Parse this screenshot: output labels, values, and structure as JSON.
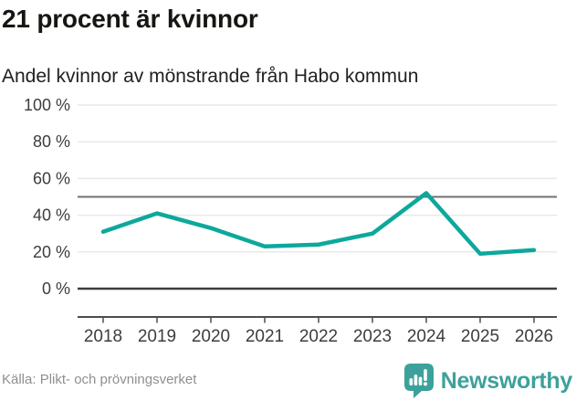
{
  "header": {
    "title": "21 procent är kvinnor",
    "subtitle": "Andel kvinnor av mönstrande från Habo kommun"
  },
  "chart_data": {
    "type": "line",
    "title": "21 procent är kvinnor",
    "subtitle": "Andel kvinnor av mönstrande från Habo kommun",
    "categories": [
      "2018",
      "2019",
      "2020",
      "2021",
      "2022",
      "2023",
      "2024",
      "2025",
      "2026"
    ],
    "series": [
      {
        "name": "Andel kvinnor av mönstrande",
        "values": [
          31,
          41,
          33,
          23,
          24,
          30,
          52,
          19,
          21
        ]
      }
    ],
    "unit": "%",
    "xlabel": "",
    "ylabel": "",
    "ylim": [
      0,
      100
    ],
    "yticks": [
      0,
      20,
      40,
      60,
      80,
      100
    ],
    "ytick_label_suffix": " %",
    "reference_line_y": 50,
    "grid": "horizontal",
    "legend": "none",
    "colors": {
      "line": "#0da89c",
      "light_gridline": "#e9e9e9",
      "reference_line": "#717171",
      "zero_line": "#3e3e3e",
      "axis_line": "#4d4d4d",
      "tick_label": "#3d3d3d"
    }
  },
  "footer": {
    "source": "Källa: Plikt- och prövningsverket",
    "brand_name": "Newsworthy",
    "brand_color": "#3da19b",
    "brand_icon": "newsworthy-speech-bubble-bar-chart-icon"
  }
}
